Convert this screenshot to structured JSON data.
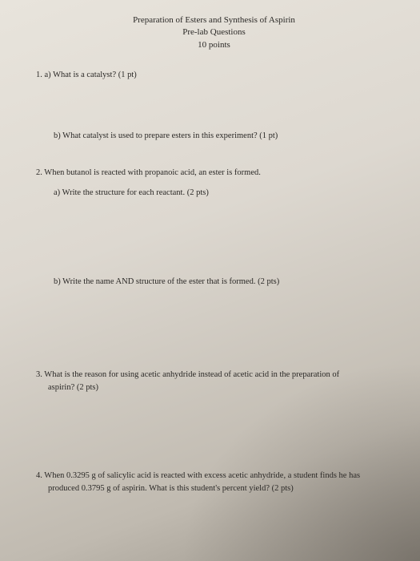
{
  "header": {
    "title": "Preparation of Esters and Synthesis of Aspirin",
    "subtitle": "Pre-lab Questions",
    "points": "10 points"
  },
  "questions": {
    "q1a": "1. a)   What is a catalyst? (1 pt)",
    "q1b": "b)    What catalyst is used to prepare esters in this experiment? (1 pt)",
    "q2": "2.  When butanol is reacted with propanoic acid, an ester is formed.",
    "q2a": "a)    Write the structure for each reactant.  (2 pts)",
    "q2b": "b)    Write the name AND structure of the ester that is formed.  (2 pts)",
    "q3": "3.  What is the reason for using acetic anhydride instead of acetic acid in the preparation of",
    "q3_cont": "aspirin? (2 pts)",
    "q4": "4.  When 0.3295 g of salicylic acid is reacted with excess acetic anhydride, a student finds he has",
    "q4_cont": "produced 0.3795 g of aspirin.  What is this student's percent yield? (2 pts)"
  }
}
